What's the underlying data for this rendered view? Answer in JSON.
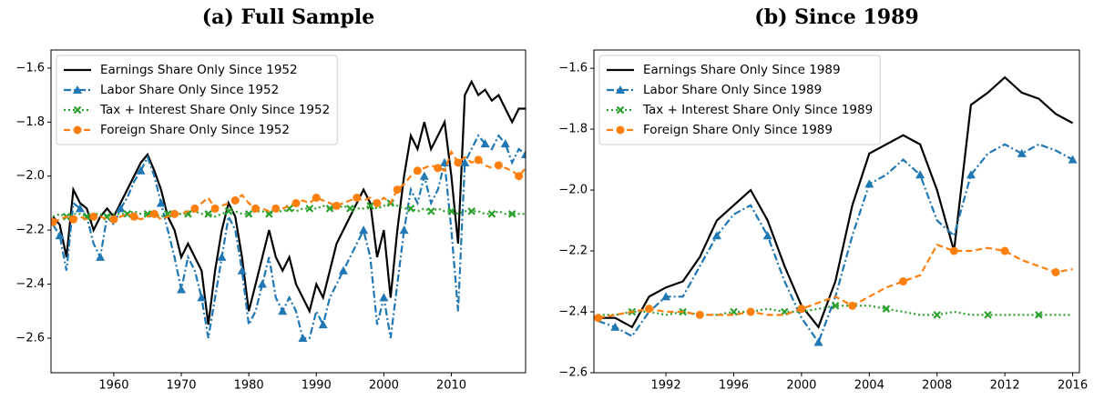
{
  "chart_data": [
    {
      "type": "line",
      "title": "(a) Full Sample",
      "x": [
        1951,
        1952,
        1953,
        1954,
        1955,
        1956,
        1957,
        1958,
        1959,
        1960,
        1961,
        1962,
        1963,
        1964,
        1965,
        1966,
        1967,
        1968,
        1969,
        1970,
        1971,
        1972,
        1973,
        1974,
        1975,
        1976,
        1977,
        1978,
        1979,
        1980,
        1981,
        1982,
        1983,
        1984,
        1985,
        1986,
        1987,
        1988,
        1989,
        1990,
        1991,
        1992,
        1993,
        1994,
        1995,
        1996,
        1997,
        1998,
        1999,
        2000,
        2001,
        2002,
        2003,
        2004,
        2005,
        2006,
        2007,
        2008,
        2009,
        2010,
        2011,
        2012,
        2013,
        2014,
        2015,
        2016,
        2017,
        2018,
        2019,
        2020,
        2021
      ],
      "xlim": [
        1950.7,
        2021
      ],
      "xticks": [
        1960,
        1970,
        1980,
        1990,
        2000,
        2010
      ],
      "ylim": [
        -2.728,
        -1.533
      ],
      "yticks": [
        {
          "value": -2.6,
          "label": "−2.6"
        },
        {
          "value": -2.4,
          "label": "−2.4"
        },
        {
          "value": -2.2,
          "label": "−2.2"
        },
        {
          "value": -2.0,
          "label": "−2.0"
        },
        {
          "value": -1.8,
          "label": "−1.8"
        },
        {
          "value": -1.6,
          "label": "−1.6"
        }
      ],
      "legend": "upper left",
      "series": [
        {
          "name": "Earnings Share Only Since 1952",
          "color": "#000000",
          "style": "solid",
          "marker": "none",
          "values": [
            -2.15,
            -2.18,
            -2.3,
            -2.05,
            -2.1,
            -2.12,
            -2.2,
            -2.15,
            -2.12,
            -2.15,
            -2.1,
            -2.05,
            -2.0,
            -1.95,
            -1.92,
            -1.98,
            -2.05,
            -2.15,
            -2.2,
            -2.3,
            -2.25,
            -2.3,
            -2.35,
            -2.55,
            -2.35,
            -2.2,
            -2.1,
            -2.15,
            -2.3,
            -2.5,
            -2.4,
            -2.3,
            -2.2,
            -2.3,
            -2.35,
            -2.3,
            -2.4,
            -2.45,
            -2.5,
            -2.4,
            -2.45,
            -2.35,
            -2.25,
            -2.2,
            -2.15,
            -2.1,
            -2.05,
            -2.1,
            -2.3,
            -2.2,
            -2.45,
            -2.2,
            -2.0,
            -1.85,
            -1.9,
            -1.8,
            -1.9,
            -1.85,
            -1.8,
            -2.0,
            -2.25,
            -1.7,
            -1.65,
            -1.7,
            -1.68,
            -1.72,
            -1.7,
            -1.75,
            -1.8,
            -1.75,
            -1.75
          ]
        },
        {
          "name": "Labor Share Only Since 1952",
          "color": "#1f77b4",
          "style": "dashdot",
          "marker": "triangle",
          "values": [
            -2.18,
            -2.22,
            -2.35,
            -2.1,
            -2.12,
            -2.15,
            -2.25,
            -2.3,
            -2.15,
            -2.18,
            -2.12,
            -2.08,
            -2.02,
            -1.98,
            -1.93,
            -2.0,
            -2.1,
            -2.2,
            -2.3,
            -2.42,
            -2.3,
            -2.35,
            -2.45,
            -2.6,
            -2.45,
            -2.3,
            -2.15,
            -2.2,
            -2.35,
            -2.55,
            -2.5,
            -2.4,
            -2.3,
            -2.45,
            -2.5,
            -2.45,
            -2.5,
            -2.6,
            -2.6,
            -2.5,
            -2.55,
            -2.45,
            -2.4,
            -2.35,
            -2.3,
            -2.25,
            -2.2,
            -2.3,
            -2.55,
            -2.45,
            -2.6,
            -2.4,
            -2.2,
            -2.05,
            -2.1,
            -2.0,
            -2.1,
            -2.05,
            -1.95,
            -2.2,
            -2.5,
            -1.95,
            -1.9,
            -1.85,
            -1.88,
            -1.9,
            -1.85,
            -1.88,
            -1.95,
            -1.9,
            -1.92
          ]
        },
        {
          "name": "Tax + Interest Share Only Since 1952",
          "color": "#2ca02c",
          "style": "dotted",
          "marker": "x",
          "values": [
            -2.15,
            -2.14,
            -2.15,
            -2.14,
            -2.14,
            -2.15,
            -2.14,
            -2.14,
            -2.15,
            -2.14,
            -2.14,
            -2.14,
            -2.13,
            -2.14,
            -2.14,
            -2.14,
            -2.15,
            -2.14,
            -2.14,
            -2.14,
            -2.14,
            -2.13,
            -2.14,
            -2.14,
            -2.15,
            -2.14,
            -2.13,
            -2.13,
            -2.14,
            -2.14,
            -2.13,
            -2.13,
            -2.14,
            -2.13,
            -2.13,
            -2.12,
            -2.13,
            -2.12,
            -2.12,
            -2.12,
            -2.11,
            -2.12,
            -2.12,
            -2.11,
            -2.12,
            -2.12,
            -2.12,
            -2.11,
            -2.12,
            -2.11,
            -2.1,
            -2.11,
            -2.12,
            -2.12,
            -2.13,
            -2.12,
            -2.13,
            -2.12,
            -2.13,
            -2.13,
            -2.14,
            -2.13,
            -2.13,
            -2.13,
            -2.14,
            -2.14,
            -2.13,
            -2.14,
            -2.14,
            -2.14,
            -2.14
          ]
        },
        {
          "name": "Foreign Share Only Since 1952",
          "color": "#ff7f0e",
          "style": "dashed",
          "marker": "circle",
          "values": [
            -2.17,
            -2.16,
            -2.15,
            -2.16,
            -2.15,
            -2.16,
            -2.15,
            -2.15,
            -2.16,
            -2.16,
            -2.15,
            -2.14,
            -2.15,
            -2.16,
            -2.15,
            -2.14,
            -2.16,
            -2.15,
            -2.14,
            -2.14,
            -2.13,
            -2.12,
            -2.1,
            -2.08,
            -2.12,
            -2.11,
            -2.1,
            -2.09,
            -2.07,
            -2.1,
            -2.12,
            -2.12,
            -2.13,
            -2.12,
            -2.12,
            -2.11,
            -2.1,
            -2.09,
            -2.1,
            -2.08,
            -2.09,
            -2.1,
            -2.11,
            -2.1,
            -2.09,
            -2.08,
            -2.09,
            -2.08,
            -2.1,
            -2.08,
            -2.1,
            -2.05,
            -2.03,
            -2.0,
            -1.98,
            -1.97,
            -1.96,
            -1.97,
            -1.98,
            -1.91,
            -1.95,
            -1.93,
            -1.95,
            -1.94,
            -1.96,
            -1.97,
            -1.96,
            -1.97,
            -1.98,
            -2.0,
            -1.97
          ]
        }
      ]
    },
    {
      "type": "line",
      "title": "(b) Since 1989",
      "x": [
        1988,
        1989,
        1990,
        1991,
        1992,
        1993,
        1994,
        1995,
        1996,
        1997,
        1998,
        1999,
        2000,
        2001,
        2002,
        2003,
        2004,
        2005,
        2006,
        2007,
        2008,
        2009,
        2010,
        2011,
        2012,
        2013,
        2014,
        2015,
        2016
      ],
      "xlim": [
        1987.75,
        2016.4
      ],
      "xticks": [
        1992,
        1996,
        2000,
        2004,
        2008,
        2012,
        2016
      ],
      "ylim": [
        -2.6,
        -1.54
      ],
      "yticks": [
        {
          "value": -2.6,
          "label": "−2.6"
        },
        {
          "value": -2.4,
          "label": "−2.4"
        },
        {
          "value": -2.2,
          "label": "−2.2"
        },
        {
          "value": -2.0,
          "label": "−2.0"
        },
        {
          "value": -1.8,
          "label": "−1.8"
        },
        {
          "value": -1.6,
          "label": "−1.6"
        }
      ],
      "legend": "upper left",
      "series": [
        {
          "name": "Earnings Share Only Since 1989",
          "color": "#000000",
          "style": "solid",
          "marker": "none",
          "values": [
            -2.42,
            -2.42,
            -2.45,
            -2.35,
            -2.32,
            -2.3,
            -2.22,
            -2.1,
            -2.05,
            -2.0,
            -2.1,
            -2.25,
            -2.38,
            -2.45,
            -2.3,
            -2.05,
            -1.88,
            -1.85,
            -1.82,
            -1.85,
            -2.0,
            -2.2,
            -1.72,
            -1.68,
            -1.63,
            -1.68,
            -1.7,
            -1.75,
            -1.78
          ]
        },
        {
          "name": "Labor Share Only Since 1989",
          "color": "#1f77b4",
          "style": "dashdot",
          "marker": "triangle",
          "values": [
            -2.43,
            -2.45,
            -2.48,
            -2.4,
            -2.35,
            -2.35,
            -2.25,
            -2.15,
            -2.08,
            -2.05,
            -2.15,
            -2.3,
            -2.42,
            -2.5,
            -2.35,
            -2.15,
            -1.98,
            -1.95,
            -1.9,
            -1.95,
            -2.1,
            -2.15,
            -1.95,
            -1.88,
            -1.85,
            -1.88,
            -1.85,
            -1.87,
            -1.9
          ]
        },
        {
          "name": "Tax + Interest Share Only Since 1989",
          "color": "#2ca02c",
          "style": "dotted",
          "marker": "x",
          "values": [
            -2.41,
            -2.41,
            -2.4,
            -2.4,
            -2.41,
            -2.4,
            -2.41,
            -2.41,
            -2.4,
            -2.4,
            -2.39,
            -2.4,
            -2.4,
            -2.39,
            -2.38,
            -2.38,
            -2.38,
            -2.39,
            -2.4,
            -2.41,
            -2.41,
            -2.4,
            -2.41,
            -2.41,
            -2.41,
            -2.41,
            -2.41,
            -2.41,
            -2.41
          ]
        },
        {
          "name": "Foreign Share Only Since 1989",
          "color": "#ff7f0e",
          "style": "dashed",
          "marker": "circle",
          "values": [
            -2.42,
            -2.41,
            -2.4,
            -2.39,
            -2.4,
            -2.4,
            -2.41,
            -2.41,
            -2.41,
            -2.4,
            -2.41,
            -2.41,
            -2.39,
            -2.37,
            -2.35,
            -2.38,
            -2.35,
            -2.32,
            -2.3,
            -2.28,
            -2.18,
            -2.2,
            -2.2,
            -2.19,
            -2.2,
            -2.23,
            -2.25,
            -2.27,
            -2.26
          ]
        }
      ]
    }
  ]
}
